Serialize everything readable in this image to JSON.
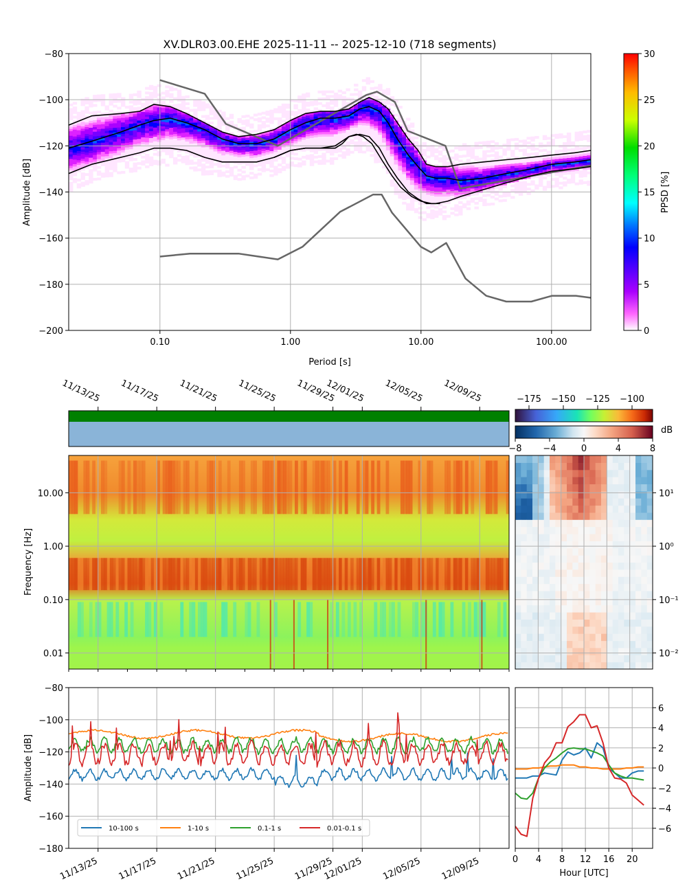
{
  "title": "XV.DLR03.00.EHE   2025-11-11 -- 2025-12-10  (718 segments)",
  "colors": {
    "grid": "#b0b0b0",
    "nlnm_nhnm": "#666666",
    "green_bar": "#008000",
    "blue_bar": "#8ab4d8",
    "series": [
      "#1f77b4",
      "#ff7f0e",
      "#2ca02c",
      "#d62728"
    ]
  },
  "chart_data": [
    {
      "id": "ppsd",
      "type": "heatmap",
      "xlabel": "Period [s]",
      "ylabel": "Amplitude [dB]",
      "xscale": "log",
      "xlim": [
        0.02,
        200
      ],
      "ylim": [
        -200,
        -80
      ],
      "xticks": [
        {
          "v": 0.1,
          "label": "0.10"
        },
        {
          "v": 1,
          "label": "1.00"
        },
        {
          "v": 10,
          "label": "10.00"
        },
        {
          "v": 100,
          "label": "100.00"
        }
      ],
      "yticks": [
        -80,
        -100,
        -120,
        -140,
        -160,
        -180,
        -200
      ],
      "colorbar": {
        "label": "PPSD [%]",
        "ticks": [
          0,
          5,
          10,
          15,
          20,
          25,
          30
        ],
        "range": [
          0,
          30
        ]
      },
      "mode": {
        "x": [
          0.02,
          0.03,
          0.05,
          0.07,
          0.09,
          0.12,
          0.16,
          0.22,
          0.3,
          0.4,
          0.55,
          0.75,
          1.0,
          1.3,
          1.7,
          2.2,
          2.8,
          3.4,
          4.0,
          4.8,
          5.6,
          6.6,
          8,
          9.5,
          11,
          13,
          16,
          20,
          30,
          45,
          70,
          100,
          150,
          200
        ],
        "y": [
          -121,
          -118,
          -114,
          -111,
          -109,
          -108,
          -110,
          -113,
          -117,
          -119,
          -119,
          -117,
          -113,
          -110,
          -108,
          -108,
          -107,
          -104,
          -103,
          -105,
          -110,
          -117,
          -124,
          -129,
          -133,
          -134,
          -134,
          -135,
          -134,
          -132,
          -130,
          -128,
          -127,
          -126
        ]
      },
      "percentile_hi": {
        "x": [
          0.02,
          0.03,
          0.05,
          0.07,
          0.09,
          0.12,
          0.16,
          0.22,
          0.3,
          0.4,
          0.55,
          0.75,
          1.0,
          1.3,
          1.7,
          2.2,
          2.8,
          3.4,
          4.0,
          4.8,
          5.6,
          6.6,
          8,
          9.5,
          11,
          13,
          16,
          20,
          30,
          45,
          70,
          100,
          150,
          200
        ],
        "y": [
          -111,
          -107,
          -106,
          -105,
          -102,
          -103,
          -106,
          -110,
          -114,
          -116,
          -115,
          -113,
          -109,
          -106,
          -105,
          -105,
          -104,
          -101,
          -99,
          -101,
          -104,
          -110,
          -117,
          -122,
          -128,
          -129,
          -129,
          -128,
          -127,
          -126,
          -125,
          -124,
          -123,
          -122
        ]
      },
      "percentile_lo": {
        "x": [
          0.02,
          0.03,
          0.05,
          0.07,
          0.09,
          0.12,
          0.16,
          0.22,
          0.3,
          0.4,
          0.55,
          0.75,
          1.0,
          1.3,
          1.7,
          2.2,
          2.8,
          3.4,
          4.0,
          4.8,
          5.6,
          6.6,
          8,
          9.5,
          11,
          13,
          16,
          20,
          30,
          45,
          70,
          100,
          150,
          200
        ],
        "y": [
          -132,
          -128,
          -125,
          -123,
          -121,
          -121,
          -122,
          -125,
          -127,
          -127,
          -127,
          -125,
          -122,
          -121,
          -121,
          -120,
          -116,
          -115,
          -116,
          -121,
          -128,
          -134,
          -140,
          -143,
          -145,
          -145,
          -144,
          -142,
          -139,
          -136,
          -133,
          -131,
          -130,
          -129
        ]
      },
      "min_curve": {
        "x": [
          0.75,
          1.0,
          1.3,
          1.7,
          2.2,
          2.5,
          2.8,
          3.2,
          3.6,
          4.2,
          5.0,
          6.0,
          7.0,
          8.5,
          10,
          12,
          14
        ],
        "y": [
          -125,
          -122,
          -121,
          -121,
          -121,
          -119,
          -116,
          -115,
          -116,
          -119,
          -126,
          -133,
          -138,
          -142,
          -144,
          -145,
          -145
        ]
      },
      "nhnm": {
        "x": [
          0.1,
          0.22,
          0.32,
          0.8,
          3.8,
          4.6,
          6.3,
          7.9,
          15.4,
          20,
          354.8
        ],
        "y": [
          -91.5,
          -97.4,
          -110.5,
          -120,
          -98,
          -96.5,
          -101,
          -113.5,
          -120,
          -138.5,
          -126
        ]
      },
      "nlnm": {
        "x": [
          0.1,
          0.17,
          0.4,
          0.8,
          1.24,
          2.4,
          4.3,
          5,
          6,
          10,
          12,
          15.6,
          21.9,
          31.6,
          45,
          70,
          101,
          154,
          328
        ],
        "y": [
          -168,
          -166.7,
          -166.7,
          -169.2,
          -163.7,
          -148.6,
          -141.1,
          -141.1,
          -149,
          -163.8,
          -166.2,
          -162.1,
          -177.5,
          -185,
          -187.5,
          -187.5,
          -185,
          -185,
          -187.5
        ]
      }
    },
    {
      "id": "spectrogram",
      "type": "heatmap",
      "ylabel": "Frequency [Hz]",
      "yscale": "log",
      "ylim": [
        0.005,
        50
      ],
      "yticks": [
        {
          "v": 0.01,
          "label": "0.01"
        },
        {
          "v": 0.1,
          "label": "0.10"
        },
        {
          "v": 1,
          "label": "1.00"
        },
        {
          "v": 10,
          "label": "10.00"
        }
      ],
      "date_ticks": [
        "11/13/25",
        "11/17/25",
        "11/21/25",
        "11/25/25",
        "11/29/25",
        "12/01/25",
        "12/05/25",
        "12/09/25"
      ],
      "date_tick_days": [
        2,
        6,
        10,
        14,
        18,
        20,
        24,
        28
      ],
      "day_range": [
        0,
        30
      ],
      "colorbar": {
        "ticks": [
          -175,
          -150,
          -125,
          -100
        ],
        "range": [
          -185,
          -85
        ]
      }
    },
    {
      "id": "diurnal-spectrogram",
      "type": "heatmap",
      "xlim": [
        0,
        24
      ],
      "yticks": [
        {
          "v": 0.01,
          "label": "10⁻²"
        },
        {
          "v": 0.1,
          "label": "10⁻¹"
        },
        {
          "v": 1,
          "label": "10⁰"
        },
        {
          "v": 10,
          "label": "10¹"
        }
      ],
      "colorbar": {
        "label": "dB",
        "ticks": [
          -8,
          -4,
          0,
          4,
          8
        ],
        "range": [
          -8,
          8
        ]
      }
    },
    {
      "id": "band-amplitude",
      "type": "line",
      "ylabel": "Amplitude [dB]",
      "ylim": [
        -180,
        -80
      ],
      "yticks": [
        -80,
        -100,
        -120,
        -140,
        -160,
        -180
      ],
      "date_ticks": [
        "11/13/25",
        "11/17/25",
        "11/21/25",
        "11/25/25",
        "11/29/25",
        "12/01/25",
        "12/05/25",
        "12/09/25"
      ],
      "series": [
        {
          "name": "10-100 s",
          "base": -134,
          "amp": 3
        },
        {
          "name": "1-10 s",
          "base": -110,
          "amp": 2
        },
        {
          "name": "0.1-1 s",
          "base": -116,
          "amp": 4
        },
        {
          "name": "0.01-0.1 s",
          "base": -121,
          "amp": 6
        }
      ]
    },
    {
      "id": "diurnal-band",
      "type": "line",
      "xlabel": "Hour [UTC]",
      "xlim": [
        0,
        23.5
      ],
      "ylim": [
        -8,
        8
      ],
      "xticks": [
        0,
        4,
        8,
        12,
        16,
        20
      ],
      "yticks": [
        6,
        4,
        2,
        0,
        -2,
        -4,
        -6
      ],
      "x": [
        0,
        1,
        2,
        3,
        4,
        5,
        6,
        7,
        8,
        9,
        10,
        11,
        12,
        13,
        14,
        15,
        16,
        17,
        18,
        19,
        20,
        21,
        22
      ],
      "series": [
        {
          "name": "10-100 s",
          "values": [
            -1.0,
            -1.0,
            -1.0,
            -0.8,
            -0.8,
            -0.5,
            -0.6,
            -0.7,
            0.8,
            1.6,
            1.3,
            1.5,
            2.0,
            1.0,
            2.5,
            2.0,
            0.0,
            -0.5,
            -1.0,
            -1.0,
            -0.5,
            -0.3,
            -0.3
          ]
        },
        {
          "name": "1-10 s",
          "values": [
            -0.1,
            -0.1,
            -0.1,
            0.0,
            0.0,
            0.1,
            0.2,
            0.2,
            0.3,
            0.3,
            0.3,
            0.1,
            0.1,
            0.0,
            0.0,
            -0.1,
            -0.1,
            -0.1,
            -0.1,
            0.0,
            0.0,
            0.1,
            0.1
          ]
        },
        {
          "name": "0.1-1 s",
          "values": [
            -2.5,
            -3.0,
            -3.1,
            -2.5,
            -1.0,
            0.0,
            0.6,
            1.0,
            1.5,
            1.9,
            2.0,
            1.9,
            1.9,
            1.7,
            1.5,
            1.2,
            0.3,
            -0.5,
            -0.8,
            -1.0,
            -1.0,
            -1.1,
            -1.2
          ]
        },
        {
          "name": "0.01-0.1 s",
          "values": [
            -5.8,
            -6.6,
            -6.8,
            -3.0,
            -1.0,
            0.5,
            1.2,
            2.5,
            2.5,
            4.1,
            4.6,
            5.3,
            5.3,
            4.0,
            4.2,
            2.5,
            0.0,
            -1.0,
            -1.1,
            -1.5,
            -2.7,
            -3.2,
            -3.7
          ]
        }
      ]
    }
  ]
}
